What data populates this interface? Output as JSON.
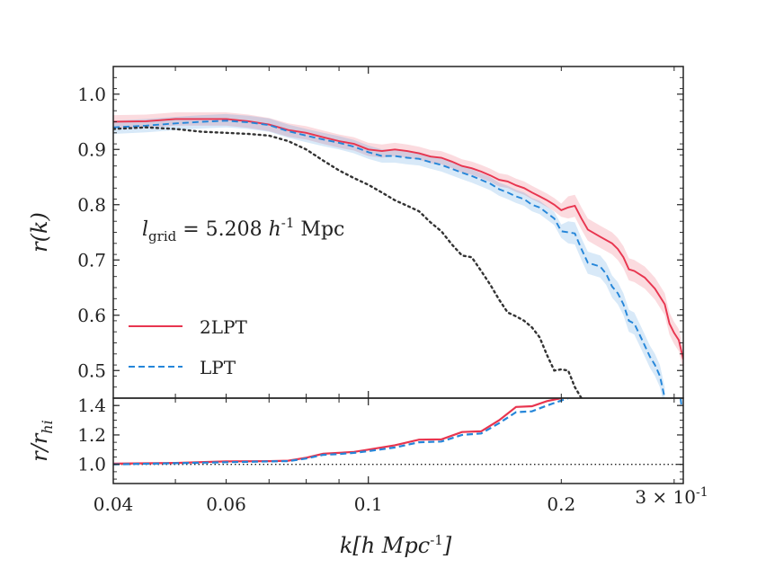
{
  "chart_data": [
    {
      "type": "line",
      "panel": "main",
      "ylabel": "r(k)",
      "xlabel": "",
      "xscale": "log",
      "xlim": [
        0.04,
        0.31
      ],
      "ylim": [
        0.45,
        1.05
      ],
      "yticks": [
        "0.5",
        "0.6",
        "0.7",
        "0.8",
        "0.9",
        "1.0"
      ],
      "annotation": "l_grid = 5.208 h^-1 Mpc",
      "legend_location": "lower-left",
      "series": [
        {
          "name": "2LPT",
          "style": "solid",
          "color": "#e8354f",
          "band": true,
          "points": [
            [
              0.04,
              0.95
            ],
            [
              0.045,
              0.951
            ],
            [
              0.05,
              0.955
            ],
            [
              0.055,
              0.955
            ],
            [
              0.06,
              0.955
            ],
            [
              0.065,
              0.951
            ],
            [
              0.07,
              0.945
            ],
            [
              0.075,
              0.935
            ],
            [
              0.08,
              0.93
            ],
            [
              0.085,
              0.922
            ],
            [
              0.09,
              0.915
            ],
            [
              0.095,
              0.91
            ],
            [
              0.1,
              0.9
            ],
            [
              0.105,
              0.897
            ],
            [
              0.11,
              0.9
            ],
            [
              0.115,
              0.897
            ],
            [
              0.12,
              0.893
            ],
            [
              0.125,
              0.887
            ],
            [
              0.13,
              0.885
            ],
            [
              0.135,
              0.878
            ],
            [
              0.14,
              0.87
            ],
            [
              0.145,
              0.866
            ],
            [
              0.15,
              0.86
            ],
            [
              0.155,
              0.853
            ],
            [
              0.16,
              0.845
            ],
            [
              0.165,
              0.842
            ],
            [
              0.17,
              0.835
            ],
            [
              0.175,
              0.83
            ],
            [
              0.18,
              0.822
            ],
            [
              0.185,
              0.815
            ],
            [
              0.19,
              0.808
            ],
            [
              0.195,
              0.8
            ],
            [
              0.2,
              0.79
            ],
            [
              0.205,
              0.795
            ],
            [
              0.21,
              0.798
            ],
            [
              0.215,
              0.775
            ],
            [
              0.22,
              0.755
            ],
            [
              0.23,
              0.742
            ],
            [
              0.24,
              0.73
            ],
            [
              0.245,
              0.72
            ],
            [
              0.25,
              0.705
            ],
            [
              0.255,
              0.683
            ],
            [
              0.26,
              0.68
            ],
            [
              0.27,
              0.668
            ],
            [
              0.28,
              0.648
            ],
            [
              0.29,
              0.62
            ],
            [
              0.295,
              0.585
            ],
            [
              0.3,
              0.568
            ],
            [
              0.305,
              0.555
            ],
            [
              0.31,
              0.52
            ]
          ]
        },
        {
          "name": "LPT",
          "style": "dashed",
          "color": "#2586d9",
          "band": true,
          "points": [
            [
              0.04,
              0.94
            ],
            [
              0.045,
              0.943
            ],
            [
              0.05,
              0.947
            ],
            [
              0.055,
              0.95
            ],
            [
              0.06,
              0.952
            ],
            [
              0.065,
              0.949
            ],
            [
              0.07,
              0.944
            ],
            [
              0.075,
              0.933
            ],
            [
              0.08,
              0.925
            ],
            [
              0.085,
              0.918
            ],
            [
              0.09,
              0.912
            ],
            [
              0.095,
              0.905
            ],
            [
              0.1,
              0.895
            ],
            [
              0.105,
              0.888
            ],
            [
              0.11,
              0.888
            ],
            [
              0.115,
              0.885
            ],
            [
              0.12,
              0.883
            ],
            [
              0.125,
              0.877
            ],
            [
              0.13,
              0.872
            ],
            [
              0.135,
              0.865
            ],
            [
              0.14,
              0.858
            ],
            [
              0.145,
              0.852
            ],
            [
              0.15,
              0.845
            ],
            [
              0.155,
              0.838
            ],
            [
              0.16,
              0.828
            ],
            [
              0.165,
              0.822
            ],
            [
              0.17,
              0.815
            ],
            [
              0.175,
              0.81
            ],
            [
              0.18,
              0.8
            ],
            [
              0.185,
              0.795
            ],
            [
              0.19,
              0.785
            ],
            [
              0.195,
              0.775
            ],
            [
              0.2,
              0.752
            ],
            [
              0.205,
              0.75
            ],
            [
              0.21,
              0.748
            ],
            [
              0.215,
              0.72
            ],
            [
              0.22,
              0.695
            ],
            [
              0.23,
              0.688
            ],
            [
              0.235,
              0.675
            ],
            [
              0.24,
              0.652
            ],
            [
              0.245,
              0.64
            ],
            [
              0.25,
              0.62
            ],
            [
              0.255,
              0.59
            ],
            [
              0.26,
              0.585
            ],
            [
              0.265,
              0.565
            ],
            [
              0.27,
              0.545
            ],
            [
              0.275,
              0.525
            ],
            [
              0.28,
              0.51
            ],
            [
              0.285,
              0.49
            ],
            [
              0.29,
              0.45
            ]
          ]
        },
        {
          "name": "",
          "style": "dotted",
          "color": "#333333",
          "band": false,
          "points": [
            [
              0.04,
              0.937
            ],
            [
              0.045,
              0.94
            ],
            [
              0.05,
              0.937
            ],
            [
              0.055,
              0.932
            ],
            [
              0.06,
              0.93
            ],
            [
              0.065,
              0.928
            ],
            [
              0.07,
              0.925
            ],
            [
              0.075,
              0.915
            ],
            [
              0.08,
              0.9
            ],
            [
              0.085,
              0.88
            ],
            [
              0.09,
              0.862
            ],
            [
              0.095,
              0.848
            ],
            [
              0.1,
              0.836
            ],
            [
              0.105,
              0.822
            ],
            [
              0.11,
              0.808
            ],
            [
              0.115,
              0.798
            ],
            [
              0.12,
              0.788
            ],
            [
              0.125,
              0.768
            ],
            [
              0.13,
              0.752
            ],
            [
              0.135,
              0.728
            ],
            [
              0.14,
              0.708
            ],
            [
              0.145,
              0.705
            ],
            [
              0.15,
              0.68
            ],
            [
              0.155,
              0.655
            ],
            [
              0.16,
              0.628
            ],
            [
              0.165,
              0.605
            ],
            [
              0.17,
              0.598
            ],
            [
              0.175,
              0.59
            ],
            [
              0.18,
              0.578
            ],
            [
              0.185,
              0.56
            ],
            [
              0.19,
              0.528
            ],
            [
              0.195,
              0.5
            ],
            [
              0.2,
              0.502
            ],
            [
              0.205,
              0.5
            ],
            [
              0.21,
              0.47
            ],
            [
              0.215,
              0.45
            ]
          ]
        }
      ]
    },
    {
      "type": "line",
      "panel": "ratio",
      "ylabel": "r/r_hi",
      "xlabel": "k[h Mpc^-1]",
      "xscale": "log",
      "xlim": [
        0.04,
        0.31
      ],
      "ylim": [
        0.87,
        1.45
      ],
      "yticks": [
        "1.0",
        "1.2",
        "1.4"
      ],
      "xticks": [
        "0.04",
        "0.06",
        "0.1",
        "0.2",
        "3 × 10^-1"
      ],
      "reference_line": 1.0,
      "series": [
        {
          "name": "2LPT",
          "style": "solid",
          "color": "#e8354f",
          "points": [
            [
              0.04,
              1.005
            ],
            [
              0.05,
              1.01
            ],
            [
              0.06,
              1.02
            ],
            [
              0.07,
              1.022
            ],
            [
              0.075,
              1.025
            ],
            [
              0.08,
              1.045
            ],
            [
              0.085,
              1.072
            ],
            [
              0.09,
              1.078
            ],
            [
              0.095,
              1.085
            ],
            [
              0.1,
              1.1
            ],
            [
              0.11,
              1.13
            ],
            [
              0.12,
              1.168
            ],
            [
              0.13,
              1.17
            ],
            [
              0.14,
              1.22
            ],
            [
              0.15,
              1.225
            ],
            [
              0.16,
              1.3
            ],
            [
              0.17,
              1.39
            ],
            [
              0.18,
              1.395
            ],
            [
              0.19,
              1.43
            ],
            [
              0.2,
              1.45
            ]
          ]
        },
        {
          "name": "LPT",
          "style": "dashed",
          "color": "#2586d9",
          "points": [
            [
              0.04,
              1.0
            ],
            [
              0.05,
              1.008
            ],
            [
              0.06,
              1.015
            ],
            [
              0.07,
              1.02
            ],
            [
              0.075,
              1.022
            ],
            [
              0.08,
              1.04
            ],
            [
              0.085,
              1.065
            ],
            [
              0.09,
              1.07
            ],
            [
              0.095,
              1.078
            ],
            [
              0.1,
              1.09
            ],
            [
              0.11,
              1.115
            ],
            [
              0.12,
              1.15
            ],
            [
              0.13,
              1.155
            ],
            [
              0.14,
              1.2
            ],
            [
              0.15,
              1.21
            ],
            [
              0.16,
              1.28
            ],
            [
              0.17,
              1.355
            ],
            [
              0.18,
              1.36
            ],
            [
              0.19,
              1.4
            ],
            [
              0.205,
              1.45
            ]
          ]
        }
      ]
    }
  ]
}
